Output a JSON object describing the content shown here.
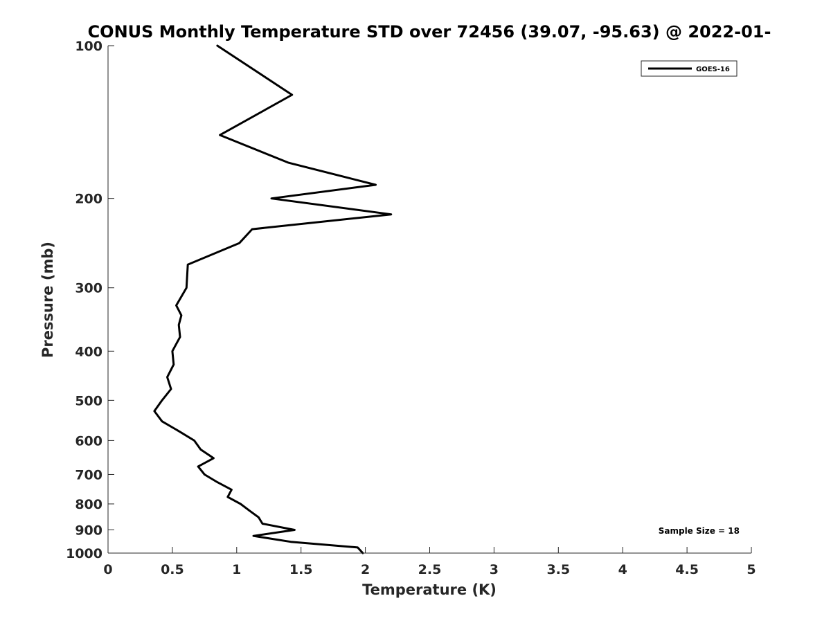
{
  "chart_data": {
    "type": "line",
    "title": "CONUS Monthly Temperature STD over 72456 (39.07, -95.63) @ 2022-01-",
    "xlabel": "Temperature (K)",
    "ylabel": "Pressure (mb)",
    "xlim": [
      0,
      5
    ],
    "ylim": [
      100,
      1000
    ],
    "y_scale": "log",
    "y_reversed": true,
    "x_ticks": [
      0,
      0.5,
      1,
      1.5,
      2,
      2.5,
      3,
      3.5,
      4,
      4.5,
      5
    ],
    "x_tick_labels": [
      "0",
      "0.5",
      "1",
      "1.5",
      "2",
      "2.5",
      "3",
      "3.5",
      "4",
      "4.5",
      "5"
    ],
    "y_ticks": [
      100,
      200,
      300,
      400,
      500,
      600,
      700,
      800,
      900,
      1000
    ],
    "y_tick_labels": [
      "100",
      "200",
      "300",
      "400",
      "500",
      "600",
      "700",
      "800",
      "900",
      "1000"
    ],
    "grid": false,
    "legend_position": "top-right",
    "series": [
      {
        "name": "GOES-16",
        "color": "#000000",
        "points": [
          {
            "t": 0.85,
            "p": 100
          },
          {
            "t": 1.43,
            "p": 125
          },
          {
            "t": 0.87,
            "p": 150
          },
          {
            "t": 1.4,
            "p": 170
          },
          {
            "t": 2.08,
            "p": 188
          },
          {
            "t": 1.27,
            "p": 200
          },
          {
            "t": 2.2,
            "p": 215
          },
          {
            "t": 1.12,
            "p": 230
          },
          {
            "t": 1.02,
            "p": 245
          },
          {
            "t": 0.62,
            "p": 270
          },
          {
            "t": 0.61,
            "p": 300
          },
          {
            "t": 0.53,
            "p": 325
          },
          {
            "t": 0.57,
            "p": 340
          },
          {
            "t": 0.55,
            "p": 355
          },
          {
            "t": 0.56,
            "p": 375
          },
          {
            "t": 0.5,
            "p": 400
          },
          {
            "t": 0.51,
            "p": 425
          },
          {
            "t": 0.46,
            "p": 450
          },
          {
            "t": 0.49,
            "p": 475
          },
          {
            "t": 0.42,
            "p": 500
          },
          {
            "t": 0.36,
            "p": 525
          },
          {
            "t": 0.42,
            "p": 550
          },
          {
            "t": 0.55,
            "p": 575
          },
          {
            "t": 0.67,
            "p": 600
          },
          {
            "t": 0.72,
            "p": 625
          },
          {
            "t": 0.82,
            "p": 650
          },
          {
            "t": 0.7,
            "p": 675
          },
          {
            "t": 0.75,
            "p": 700
          },
          {
            "t": 0.85,
            "p": 725
          },
          {
            "t": 0.96,
            "p": 750
          },
          {
            "t": 0.93,
            "p": 775
          },
          {
            "t": 1.03,
            "p": 800
          },
          {
            "t": 1.1,
            "p": 825
          },
          {
            "t": 1.17,
            "p": 850
          },
          {
            "t": 1.2,
            "p": 875
          },
          {
            "t": 1.45,
            "p": 900
          },
          {
            "t": 1.13,
            "p": 925
          },
          {
            "t": 1.42,
            "p": 950
          },
          {
            "t": 1.94,
            "p": 975
          },
          {
            "t": 1.98,
            "p": 1000
          }
        ]
      }
    ],
    "annotation": "Sample Size = 18"
  }
}
